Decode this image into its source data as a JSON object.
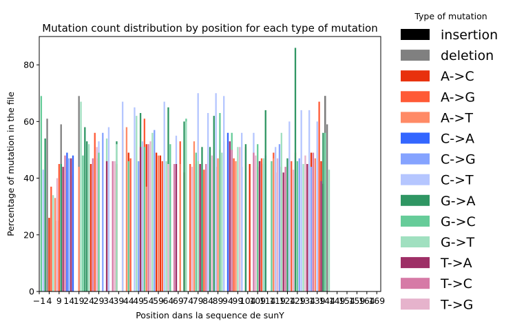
{
  "chart_data": {
    "type": "bar",
    "title": "Mutation count distribution by position for each type of mutation",
    "xlabel": "Position dans la sequence de sunY",
    "ylabel": "Percentage of mutation in the file",
    "xlim": [
      -1,
      171
    ],
    "ylim": [
      0,
      90
    ],
    "x_ticks": [
      -1,
      4,
      9,
      14,
      19,
      24,
      29,
      34,
      39,
      44,
      49,
      54,
      59,
      64,
      69,
      74,
      79,
      84,
      89,
      94,
      99,
      104,
      109,
      114,
      119,
      124,
      129,
      134,
      139,
      144,
      149,
      154,
      159,
      164,
      169
    ],
    "x_tick_labels": [
      "−1",
      "4",
      "9",
      "14",
      "19",
      "24",
      "29",
      "34",
      "39",
      "44",
      "49",
      "54",
      "59",
      "64",
      "69",
      "74",
      "79",
      "84",
      "89",
      "94",
      "99",
      "104",
      "109",
      "114",
      "119",
      "124",
      "129",
      "134",
      "139",
      "144",
      "149",
      "154",
      "159",
      "164",
      "169"
    ],
    "y_ticks": [
      0,
      20,
      40,
      60,
      80
    ],
    "y_tick_labels": [
      "0",
      "20",
      "40",
      "60",
      "80"
    ],
    "grid": false,
    "legend": {
      "title": "Type of mutation",
      "placement": "outside-right",
      "entries": [
        {
          "name": "insertion",
          "color": "#000000"
        },
        {
          "name": "deletion",
          "color": "#808080"
        },
        {
          "name": "A->C",
          "color": "#e8310d"
        },
        {
          "name": "A->G",
          "color": "#ff5a36"
        },
        {
          "name": "A->T",
          "color": "#ff8a66"
        },
        {
          "name": "C->A",
          "color": "#3366ff"
        },
        {
          "name": "C->G",
          "color": "#85a3ff"
        },
        {
          "name": "C->T",
          "color": "#b5c6ff"
        },
        {
          "name": "G->A",
          "color": "#2f9663"
        },
        {
          "name": "G->C",
          "color": "#66cc99"
        },
        {
          "name": "G->T",
          "color": "#a0e0c0"
        },
        {
          "name": "T->A",
          "color": "#9e2f66"
        },
        {
          "name": "T->C",
          "color": "#d67aa6"
        },
        {
          "name": "T->G",
          "color": "#e6b3cc"
        }
      ]
    },
    "series": [
      {
        "name": "insertion",
        "x": [
          142,
          143
        ],
        "values": [
          38,
          69
        ]
      },
      {
        "name": "deletion",
        "x": [
          3,
          10,
          19,
          143,
          144
        ],
        "values": [
          61,
          59,
          69,
          69,
          59
        ]
      },
      {
        "name": "A->C",
        "x": [
          4,
          8,
          25,
          38,
          44,
          53,
          58,
          60,
          72,
          80,
          88,
          96,
          105,
          110,
          118,
          121,
          136,
          141
        ],
        "values": [
          26,
          25,
          45,
          45,
          49,
          52,
          49,
          48,
          42,
          45,
          44,
          47,
          45,
          46,
          42,
          44,
          49,
          46
        ]
      },
      {
        "name": "A->G",
        "x": [
          5,
          9,
          27,
          41,
          45,
          52,
          61,
          70,
          75,
          82,
          90,
          97,
          103,
          111,
          117,
          126,
          134,
          140
        ],
        "values": [
          37,
          45,
          56,
          57,
          47,
          61,
          46,
          53,
          45,
          43,
          50,
          47,
          51,
          47,
          49,
          46,
          45,
          67
        ]
      },
      {
        "name": "A->T",
        "x": [
          7,
          19,
          28,
          43,
          53,
          59,
          70,
          77,
          89,
          98,
          109,
          117,
          128,
          138
        ],
        "values": [
          33,
          44,
          47,
          58,
          37,
          48,
          45,
          53,
          47,
          46,
          44,
          47,
          49,
          47
        ]
      },
      {
        "name": "C->A",
        "x": [
          13,
          16,
          94,
          101,
          113
        ],
        "values": [
          49,
          48,
          56,
          44,
          48
        ]
      },
      {
        "name": "C->G",
        "x": [
          14,
          31,
          49,
          57,
          78,
          92,
          103,
          112,
          120,
          130,
          136
        ],
        "values": [
          47,
          56,
          46,
          57,
          45,
          53,
          50,
          45,
          52,
          47,
          44
        ]
      },
      {
        "name": "C->T",
        "x": [
          1,
          15,
          29,
          34,
          41,
          47,
          51,
          62,
          68,
          79,
          84,
          88,
          92,
          101,
          107,
          118,
          125,
          131,
          135,
          139
        ],
        "values": [
          43,
          41,
          53,
          58,
          67,
          65,
          53,
          67,
          55,
          70,
          63,
          70,
          69,
          56,
          56,
          51,
          60,
          64,
          64,
          60
        ]
      },
      {
        "name": "G->A",
        "x": [
          2,
          10,
          22,
          23,
          38,
          50,
          64,
          72,
          81,
          85,
          87,
          103,
          113,
          124,
          128,
          142
        ],
        "values": [
          54,
          45,
          58,
          53,
          53,
          63,
          65,
          60,
          51,
          51,
          62,
          52,
          64,
          47,
          86,
          56
        ]
      },
      {
        "name": "G->C",
        "x": [
          0,
          21,
          29,
          44,
          52,
          65,
          73,
          78,
          90,
          96,
          109,
          116,
          129,
          143
        ],
        "values": [
          69,
          48,
          49,
          46,
          51,
          52,
          61,
          49,
          63,
          56,
          52,
          46,
          46,
          56
        ]
      },
      {
        "name": "G->T",
        "x": [
          6,
          20,
          24,
          33,
          38,
          48,
          56,
          63,
          73,
          79,
          91,
          99,
          112,
          121,
          132,
          145
        ],
        "values": [
          34,
          67,
          52,
          54,
          52,
          62,
          56,
          46,
          60,
          46,
          49,
          51,
          47,
          56,
          45,
          43
        ]
      },
      {
        "name": "T->A",
        "x": [
          11,
          15,
          33,
          50,
          68,
          80,
          95,
          110,
          122,
          134,
          141
        ],
        "values": [
          44,
          47,
          46,
          51,
          45,
          45,
          53,
          46,
          42,
          45,
          39
        ]
      },
      {
        "name": "T->C",
        "x": [
          12,
          26,
          36,
          54,
          67,
          83,
          96,
          107,
          123,
          137
        ],
        "values": [
          48,
          47,
          46,
          52,
          45,
          45,
          50,
          49,
          44,
          49
        ]
      },
      {
        "name": "T->G",
        "x": [
          8,
          28,
          37,
          55,
          64,
          76,
          86,
          100,
          108,
          119,
          127,
          133
        ],
        "values": [
          40,
          51,
          46,
          53,
          45,
          44,
          48,
          51,
          48,
          47,
          43,
          48
        ]
      }
    ]
  }
}
